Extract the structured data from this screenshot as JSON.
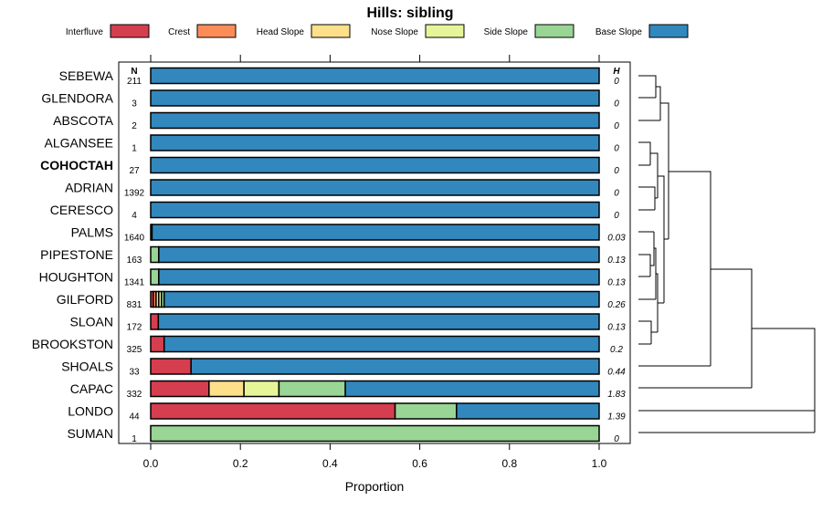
{
  "chart_data": {
    "type": "bar",
    "orientation": "horizontal",
    "stacked": true,
    "title": "Hills: sibling",
    "xlabel": "Proportion",
    "ylabel": "",
    "xlim": [
      0,
      1
    ],
    "xticks": [
      "0.0",
      "0.2",
      "0.4",
      "0.6",
      "0.8",
      "1.0"
    ],
    "xtick_values": [
      0,
      0.2,
      0.4,
      0.6,
      0.8,
      1.0
    ],
    "n_header": "N",
    "h_header": "H",
    "highlighted_category": "COHOCTAH",
    "legend": [
      {
        "name": "Interfluve",
        "color": "#D53E4F"
      },
      {
        "name": "Crest",
        "color": "#FC8D59"
      },
      {
        "name": "Head Slope",
        "color": "#FEE08B"
      },
      {
        "name": "Nose Slope",
        "color": "#E6F598"
      },
      {
        "name": "Side Slope",
        "color": "#99D594"
      },
      {
        "name": "Base Slope",
        "color": "#3288BD"
      }
    ],
    "categories": [
      "SEBEWA",
      "GLENDORA",
      "ABSCOTA",
      "ALGANSEE",
      "COHOCTAH",
      "ADRIAN",
      "CERESCO",
      "PALMS",
      "PIPESTONE",
      "HOUGHTON",
      "GILFORD",
      "SLOAN",
      "BROOKSTON",
      "SHOALS",
      "CAPAC",
      "LONDO",
      "SUMAN"
    ],
    "n": [
      "211",
      "3",
      "2",
      "1",
      "27",
      "1392",
      "4",
      "1640",
      "163",
      "1341",
      "831",
      "172",
      "325",
      "33",
      "332",
      "44",
      "1"
    ],
    "h": [
      "0",
      "0",
      "0",
      "0",
      "0",
      "0",
      "0",
      "0.03",
      "0.13",
      "0.13",
      "0.26",
      "0.13",
      "0.2",
      "0.44",
      "1.83",
      "1.39",
      "0"
    ],
    "series": [
      {
        "name": "Interfluve",
        "values": [
          0,
          0,
          0,
          0,
          0,
          0,
          0,
          0.003,
          0,
          0,
          0.006,
          0.017,
          0.03,
          0.09,
          0.13,
          0.545,
          0
        ]
      },
      {
        "name": "Crest",
        "values": [
          0,
          0,
          0,
          0,
          0,
          0,
          0,
          0,
          0,
          0,
          0.006,
          0,
          0,
          0,
          0,
          0,
          0
        ]
      },
      {
        "name": "Head Slope",
        "values": [
          0,
          0,
          0,
          0,
          0,
          0,
          0,
          0,
          0,
          0,
          0.006,
          0,
          0,
          0,
          0.078,
          0,
          0
        ]
      },
      {
        "name": "Nose Slope",
        "values": [
          0,
          0,
          0,
          0,
          0,
          0,
          0,
          0,
          0,
          0,
          0.006,
          0,
          0,
          0,
          0.078,
          0,
          0
        ]
      },
      {
        "name": "Side Slope",
        "values": [
          0,
          0,
          0,
          0,
          0,
          0,
          0,
          0,
          0.018,
          0.018,
          0.006,
          0,
          0,
          0,
          0.148,
          0.137,
          1.0
        ]
      },
      {
        "name": "Base Slope",
        "values": [
          1,
          1,
          1,
          1,
          1,
          1,
          1,
          0.997,
          0.982,
          0.982,
          0.97,
          0.983,
          0.97,
          0.91,
          0.566,
          0.318,
          0
        ]
      }
    ],
    "dendrogram": "hierarchical clustering of sibling distributions (right side)"
  }
}
